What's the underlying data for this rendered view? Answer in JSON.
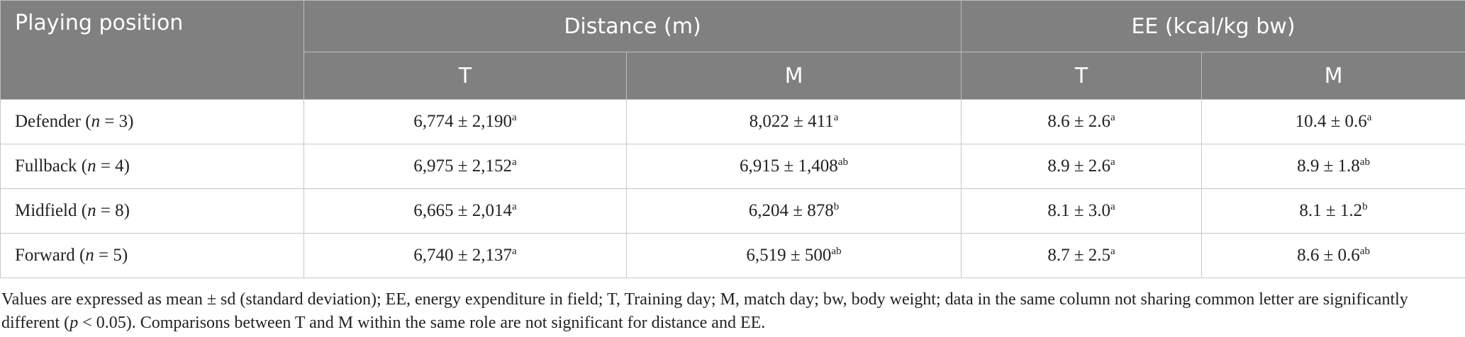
{
  "table": {
    "header": {
      "position": "Playing position",
      "groups": [
        "Distance (m)",
        "EE (kcal/kg bw)"
      ],
      "subheaders": [
        "T",
        "M",
        "T",
        "M"
      ]
    },
    "rows": [
      {
        "position": [
          "Defender (",
          "n",
          " = 3)"
        ],
        "cells": [
          {
            "value": "6,774 ± 2,190",
            "sup": "a"
          },
          {
            "value": "8,022 ± 411",
            "sup": "a"
          },
          {
            "value": "8.6 ± 2.6",
            "sup": "a"
          },
          {
            "value": "10.4 ± 0.6",
            "sup": "a"
          }
        ]
      },
      {
        "position": [
          "Fullback (",
          "n",
          " = 4)"
        ],
        "cells": [
          {
            "value": "6,975 ± 2,152",
            "sup": "a"
          },
          {
            "value": "6,915 ± 1,408",
            "sup": "ab"
          },
          {
            "value": "8.9 ± 2.6",
            "sup": "a"
          },
          {
            "value": "8.9 ± 1.8",
            "sup": "ab"
          }
        ]
      },
      {
        "position": [
          "Midfield (",
          "n",
          " = 8)"
        ],
        "cells": [
          {
            "value": "6,665 ± 2,014",
            "sup": "a"
          },
          {
            "value": "6,204 ± 878",
            "sup": "b"
          },
          {
            "value": "8.1 ± 3.0",
            "sup": "a"
          },
          {
            "value": "8.1 ± 1.2",
            "sup": "b"
          }
        ]
      },
      {
        "position": [
          "Forward (",
          "n",
          " = 5)"
        ],
        "cells": [
          {
            "value": "6,740 ± 2,137",
            "sup": "a"
          },
          {
            "value": "6,519 ± 500",
            "sup": "ab"
          },
          {
            "value": "8.7 ± 2.5",
            "sup": "a"
          },
          {
            "value": "8.6 ± 0.6",
            "sup": "ab"
          }
        ]
      }
    ],
    "footnote": [
      "Values are expressed as mean ± sd (standard deviation); EE, energy expenditure in field; T, Training day; M, match day; bw, body weight; data in the same column not sharing common letter are significantly different (",
      "p",
      " < 0.05). Comparisons between T and M within the same role are not significant for distance and EE."
    ]
  }
}
